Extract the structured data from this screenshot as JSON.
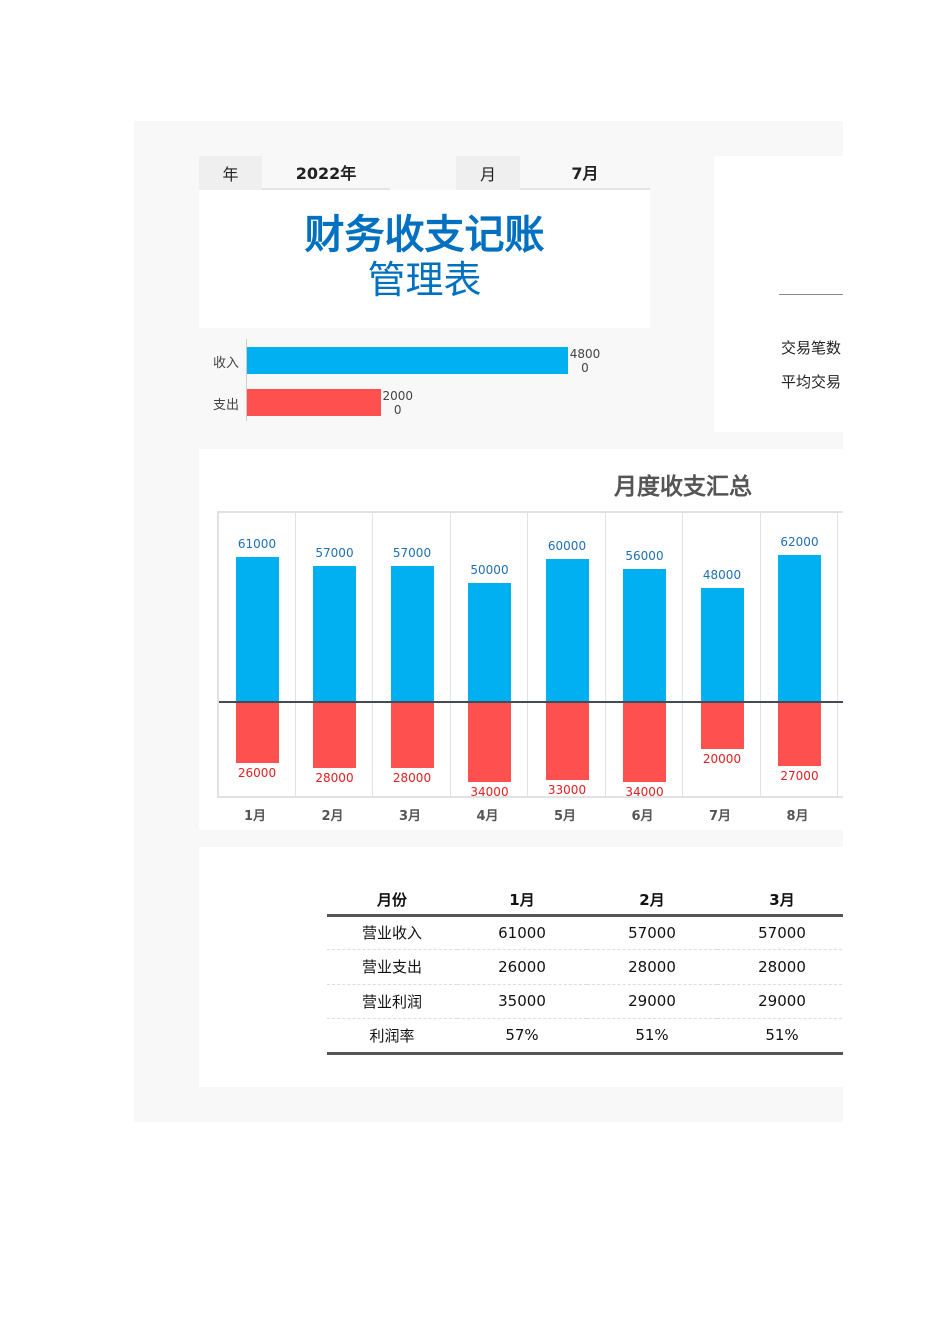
{
  "header": {
    "year_label": "年",
    "year_value": "2022年",
    "month_label": "月",
    "month_value": "7月"
  },
  "title": {
    "line1": "财务收支记账",
    "line2": "管理表"
  },
  "summary_bars": {
    "items": [
      {
        "label": "收入",
        "value": "48000",
        "color": "#00b0f0",
        "fraction": 1.0
      },
      {
        "label": "支出",
        "value": "20000",
        "color": "#ff5050",
        "fraction": 0.4167
      }
    ]
  },
  "side_panel": {
    "items": [
      "交易笔数",
      "平均交易"
    ]
  },
  "chart_data": {
    "type": "bar",
    "title": "月度收支汇总",
    "categories": [
      "1月",
      "2月",
      "3月",
      "4月",
      "5月",
      "6月",
      "7月",
      "8月"
    ],
    "series": [
      {
        "values": [
          61000,
          57000,
          57000,
          50000,
          60000,
          56000,
          48000,
          62000
        ],
        "color": "#00b0f0",
        "label_color": "#1f6fb5"
      },
      {
        "values": [
          26000,
          28000,
          28000,
          34000,
          33000,
          34000,
          20000,
          27000
        ],
        "color": "#ff5050",
        "label_color": "#e02020"
      }
    ],
    "expense_plotted_below_axis": true,
    "grid": "vertical",
    "legend": "none"
  },
  "table": {
    "headers": [
      "月份",
      "1月",
      "2月",
      "3月"
    ],
    "rows": [
      [
        "营业收入",
        "61000",
        "57000",
        "57000"
      ],
      [
        "营业支出",
        "26000",
        "28000",
        "28000"
      ],
      [
        "营业利润",
        "35000",
        "29000",
        "29000"
      ],
      [
        "利润率",
        "57%",
        "51%",
        "51%"
      ]
    ]
  }
}
